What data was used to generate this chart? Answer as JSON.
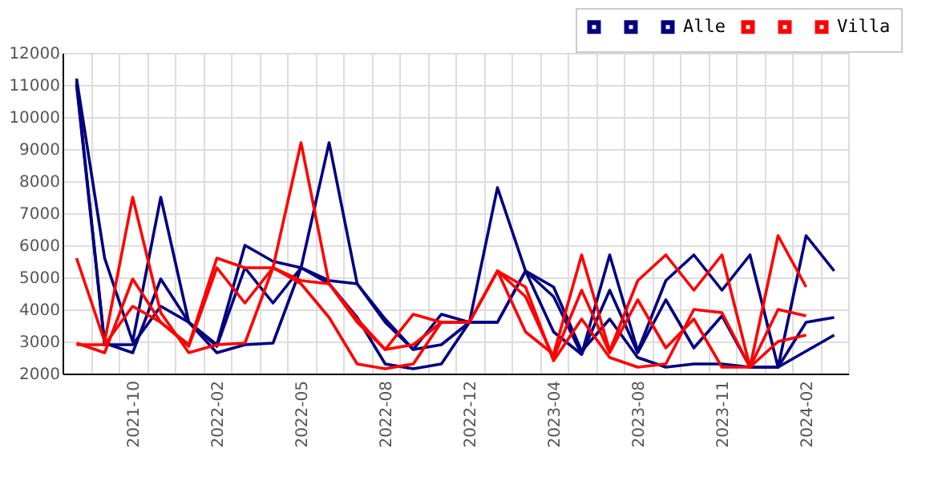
{
  "chart_data": {
    "type": "line",
    "categories": [
      null,
      null,
      "2021-10",
      null,
      null,
      "2022-02",
      null,
      null,
      "2022-05",
      null,
      null,
      "2022-08",
      null,
      null,
      "2022-12",
      null,
      null,
      "2023-04",
      null,
      null,
      "2023-08",
      null,
      null,
      "2023-11",
      null,
      null,
      "2024-02",
      null
    ],
    "series": [
      {
        "color": "#000080",
        "values": [
          11200,
          5600,
          3000,
          7500,
          3600,
          2650,
          2900,
          2950,
          5300,
          9200,
          4800,
          3600,
          2750,
          2900,
          3600,
          7800,
          5200,
          3300,
          2600,
          5700,
          2700,
          4900,
          5700,
          4600,
          5700,
          2200,
          6300,
          5200
        ]
      },
      {
        "color": "#000080",
        "values": [
          11100,
          2950,
          2650,
          4950,
          3600,
          2900,
          6000,
          5500,
          5300,
          4900,
          4800,
          3700,
          2750,
          3850,
          3600,
          3600,
          5200,
          4400,
          2600,
          4600,
          2650,
          4300,
          2800,
          3800,
          2200,
          2200,
          3600,
          3750
        ]
      },
      {
        "name": "Alle",
        "color": "#000080",
        "values": [
          11000,
          2900,
          2900,
          4100,
          3600,
          2850,
          5300,
          4200,
          5300,
          4800,
          3750,
          2300,
          2150,
          2300,
          3600,
          3600,
          5200,
          4700,
          2700,
          3700,
          2500,
          2200,
          2300,
          2300,
          2200,
          2200,
          2700,
          3200
        ]
      },
      {
        "color": "#ff0000",
        "values": [
          5600,
          3000,
          7500,
          3900,
          2650,
          2900,
          2950,
          5300,
          9200,
          4800,
          3600,
          2750,
          2900,
          3600,
          3600,
          5200,
          3300,
          2600,
          5700,
          2700,
          4900,
          5700,
          4600,
          5700,
          2200,
          6300,
          4700,
          null
        ]
      },
      {
        "color": "#ff0000",
        "values": [
          2950,
          2650,
          4950,
          3600,
          2900,
          5600,
          5300,
          5300,
          4900,
          4800,
          3700,
          2750,
          3850,
          3600,
          3600,
          5200,
          4400,
          2500,
          4600,
          2650,
          4300,
          2800,
          3700,
          2200,
          2200,
          4000,
          3800,
          null
        ]
      },
      {
        "name": "Villa",
        "color": "#ff0000",
        "values": [
          2900,
          2900,
          4100,
          3600,
          2850,
          5300,
          4200,
          5300,
          4800,
          3750,
          2300,
          2150,
          2300,
          3600,
          3600,
          5200,
          4700,
          2400,
          3700,
          2500,
          2200,
          2300,
          4000,
          3900,
          2200,
          3000,
          3200,
          null
        ]
      }
    ],
    "ylim": [
      2000,
      12000
    ],
    "yticks": [
      2000,
      3000,
      4000,
      5000,
      6000,
      7000,
      8000,
      9000,
      10000,
      11000,
      12000
    ],
    "grid": true,
    "legend": "top right"
  }
}
